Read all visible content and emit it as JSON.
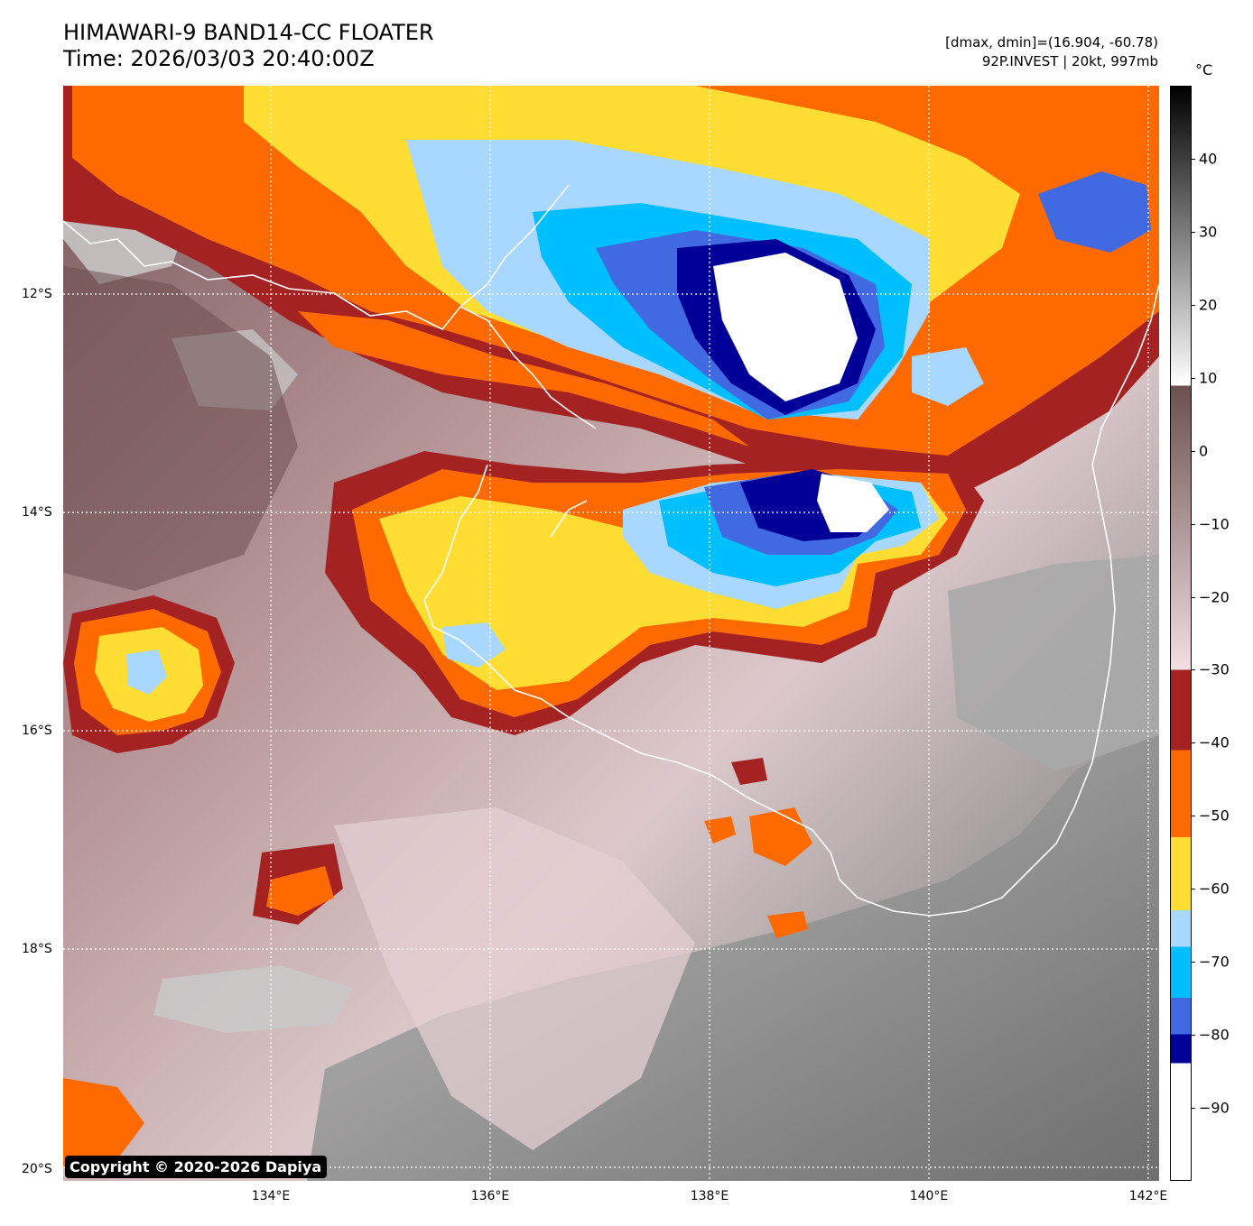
{
  "header": {
    "title_line1": "HIMAWARI-9 BAND14-CC FLOATER",
    "title_line2": "Time: 2026/03/03 20:40:00Z",
    "info_line1": "[dmax, dmin]=(16.904, -60.78)",
    "info_line2": "92P.INVEST | 20kt, 997mb"
  },
  "map": {
    "lat_labels": [
      "12°S",
      "14°S",
      "16°S",
      "18°S",
      "20°S"
    ],
    "lon_labels": [
      "134°E",
      "136°E",
      "138°E",
      "140°E",
      "142°E"
    ],
    "gridlines": true,
    "coastline_color": "#ffffff",
    "copyright": "Copyright © 2020-2026 Dapiya"
  },
  "colorbar": {
    "unit": "°C",
    "ticks": [
      "40",
      "30",
      "20",
      "10",
      "0",
      "−10",
      "−20",
      "−30",
      "−40",
      "−50",
      "−60",
      "−70",
      "−80",
      "−90"
    ],
    "tick_values": [
      40,
      30,
      20,
      10,
      0,
      -10,
      -20,
      -30,
      -40,
      -50,
      -60,
      -70,
      -80,
      -90
    ],
    "range": [
      -100,
      50
    ],
    "segments": [
      {
        "from": 50,
        "to": 9,
        "colors": [
          "#000000",
          "#ffffff"
        ]
      },
      {
        "from": 9,
        "to": -30,
        "colors": [
          "#6b5050",
          "#f2dfe1"
        ]
      },
      {
        "from": -30,
        "to": -41,
        "color": "#a52222"
      },
      {
        "from": -41,
        "to": -53,
        "color": "#ff6a00"
      },
      {
        "from": -53,
        "to": -63,
        "color": "#ffdd33"
      },
      {
        "from": -63,
        "to": -68,
        "color": "#a8d8ff"
      },
      {
        "from": -68,
        "to": -75,
        "color": "#00bfff"
      },
      {
        "from": -75,
        "to": -80,
        "color": "#4169e1"
      },
      {
        "from": -80,
        "to": -84,
        "color": "#000099"
      },
      {
        "from": -84,
        "to": -100,
        "color": "#ffffff"
      }
    ]
  }
}
